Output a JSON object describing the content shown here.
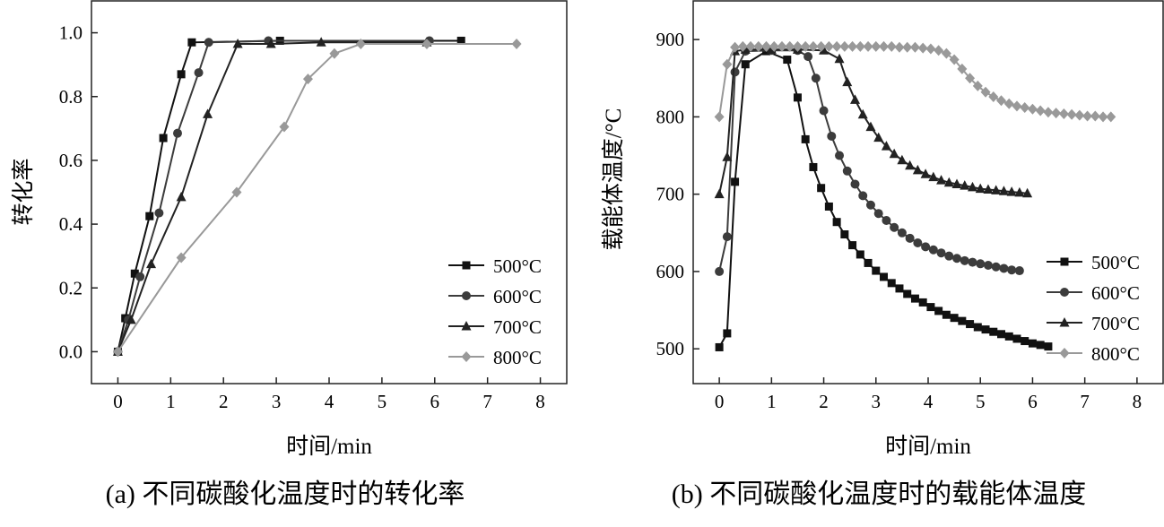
{
  "chart_data": [
    {
      "type": "line",
      "caption": "(a) 不同碳酸化温度时的转化率",
      "xlabel": "时间/min",
      "ylabel": "转化率",
      "xlim": [
        -0.5,
        8.5
      ],
      "ylim": [
        -0.1,
        1.1
      ],
      "xticks": [
        0,
        1,
        2,
        3,
        4,
        5,
        6,
        7,
        8
      ],
      "yticks": [
        0.0,
        0.2,
        0.4,
        0.6,
        0.8,
        1.0
      ],
      "ytick_labels": [
        "0.0",
        "0.2",
        "0.4",
        "0.6",
        "0.8",
        "1.0"
      ],
      "legend_position": "bottom-right",
      "series": [
        {
          "name": "500°C",
          "marker": "square",
          "color": "#111111",
          "x": [
            0,
            0.14,
            0.32,
            0.6,
            0.86,
            1.2,
            1.4,
            3.07,
            6.5
          ],
          "y": [
            0,
            0.105,
            0.245,
            0.425,
            0.67,
            0.87,
            0.97,
            0.975,
            0.975
          ]
        },
        {
          "name": "600°C",
          "marker": "circle",
          "color": "#3c3c3c",
          "x": [
            0,
            0.2,
            0.42,
            0.78,
            1.13,
            1.53,
            1.72,
            2.85,
            5.9
          ],
          "y": [
            0,
            0.1,
            0.235,
            0.435,
            0.685,
            0.875,
            0.97,
            0.975,
            0.975
          ]
        },
        {
          "name": "700°C",
          "marker": "triangle",
          "color": "#222222",
          "x": [
            0,
            0.25,
            0.63,
            1.2,
            1.7,
            2.27,
            2.9,
            3.85,
            5.85
          ],
          "y": [
            0,
            0.1,
            0.275,
            0.485,
            0.745,
            0.965,
            0.965,
            0.97,
            0.97
          ]
        },
        {
          "name": "800°C",
          "marker": "diamond",
          "color": "#999999",
          "x": [
            0,
            1.2,
            2.25,
            3.15,
            3.6,
            4.1,
            4.6,
            5.85,
            7.55
          ],
          "y": [
            0,
            0.295,
            0.5,
            0.705,
            0.855,
            0.935,
            0.965,
            0.965,
            0.965
          ]
        }
      ]
    },
    {
      "type": "line",
      "caption": "(b) 不同碳酸化温度时的载能体温度",
      "xlabel": "时间/min",
      "ylabel": "载能体温度/°C",
      "xlim": [
        -0.5,
        8.5
      ],
      "ylim": [
        455,
        950
      ],
      "xticks": [
        0,
        1,
        2,
        3,
        4,
        5,
        6,
        7,
        8
      ],
      "yticks": [
        500,
        600,
        700,
        800,
        900
      ],
      "ytick_labels": [
        "500",
        "600",
        "700",
        "800",
        "900"
      ],
      "legend_position": "bottom-right",
      "series": [
        {
          "name": "500°C",
          "marker": "square",
          "color": "#111111",
          "x": [
            0,
            0.15,
            0.3,
            0.5,
            0.9,
            1.3,
            1.5,
            1.65,
            1.8,
            1.95,
            2.1,
            2.25,
            2.4,
            2.55,
            2.7,
            2.85,
            3.0,
            3.15,
            3.3,
            3.45,
            3.6,
            3.75,
            3.9,
            4.05,
            4.2,
            4.35,
            4.5,
            4.65,
            4.8,
            4.95,
            5.1,
            5.25,
            5.4,
            5.55,
            5.7,
            5.85,
            6.0,
            6.15,
            6.3
          ],
          "y": [
            502,
            520,
            716,
            868,
            885,
            874,
            825,
            771,
            735,
            708,
            684,
            664,
            648,
            634,
            622,
            611,
            601,
            593,
            585,
            578,
            571,
            565,
            560,
            554,
            549,
            544,
            540,
            536,
            532,
            528,
            525,
            522,
            519,
            516,
            513,
            510,
            507,
            505,
            503
          ]
        },
        {
          "name": "600°C",
          "marker": "circle",
          "color": "#3c3c3c",
          "x": [
            0,
            0.15,
            0.3,
            0.5,
            1.0,
            1.5,
            1.7,
            1.85,
            2.0,
            2.15,
            2.3,
            2.45,
            2.6,
            2.75,
            2.9,
            3.05,
            3.2,
            3.35,
            3.5,
            3.65,
            3.8,
            3.95,
            4.1,
            4.25,
            4.4,
            4.55,
            4.7,
            4.85,
            5.0,
            5.15,
            5.3,
            5.45,
            5.6,
            5.75
          ],
          "y": [
            600,
            645,
            858,
            885,
            886,
            886,
            878,
            850,
            808,
            775,
            750,
            730,
            713,
            698,
            686,
            675,
            666,
            657,
            650,
            643,
            637,
            632,
            628,
            624,
            620,
            617,
            614,
            612,
            610,
            608,
            606,
            604,
            602,
            601
          ]
        },
        {
          "name": "700°C",
          "marker": "triangle",
          "color": "#222222",
          "x": [
            0,
            0.15,
            0.3,
            0.5,
            1.0,
            1.5,
            2.0,
            2.3,
            2.45,
            2.6,
            2.75,
            2.9,
            3.05,
            3.2,
            3.35,
            3.5,
            3.65,
            3.8,
            3.95,
            4.1,
            4.25,
            4.4,
            4.55,
            4.7,
            4.85,
            5.0,
            5.15,
            5.3,
            5.45,
            5.6,
            5.75,
            5.9
          ],
          "y": [
            700,
            748,
            885,
            887,
            887,
            887,
            886,
            875,
            845,
            822,
            803,
            787,
            773,
            762,
            752,
            744,
            737,
            731,
            726,
            722,
            718,
            715,
            713,
            711,
            709,
            707,
            706,
            705,
            704,
            703,
            702,
            701
          ]
        },
        {
          "name": "800°C",
          "marker": "diamond",
          "color": "#999999",
          "x": [
            0,
            0.15,
            0.3,
            0.45,
            0.6,
            0.75,
            0.9,
            1.05,
            1.2,
            1.35,
            1.5,
            1.65,
            1.8,
            1.95,
            2.1,
            2.25,
            2.4,
            2.55,
            2.7,
            2.85,
            3.0,
            3.15,
            3.3,
            3.45,
            3.6,
            3.75,
            3.9,
            4.05,
            4.2,
            4.35,
            4.5,
            4.65,
            4.8,
            4.95,
            5.1,
            5.25,
            5.4,
            5.55,
            5.7,
            5.85,
            6.0,
            6.15,
            6.3,
            6.45,
            6.6,
            6.75,
            6.9,
            7.05,
            7.2,
            7.35,
            7.5
          ],
          "y": [
            800,
            868,
            890,
            891,
            891,
            891,
            891,
            891,
            891,
            891,
            891,
            891,
            891,
            891,
            891,
            891,
            891,
            891,
            891,
            891,
            891,
            891,
            891,
            890,
            890,
            890,
            889,
            888,
            886,
            882,
            874,
            862,
            850,
            840,
            832,
            826,
            821,
            817,
            814,
            812,
            810,
            808,
            806,
            805,
            804,
            803,
            802,
            801,
            801,
            800,
            800
          ]
        }
      ]
    }
  ]
}
